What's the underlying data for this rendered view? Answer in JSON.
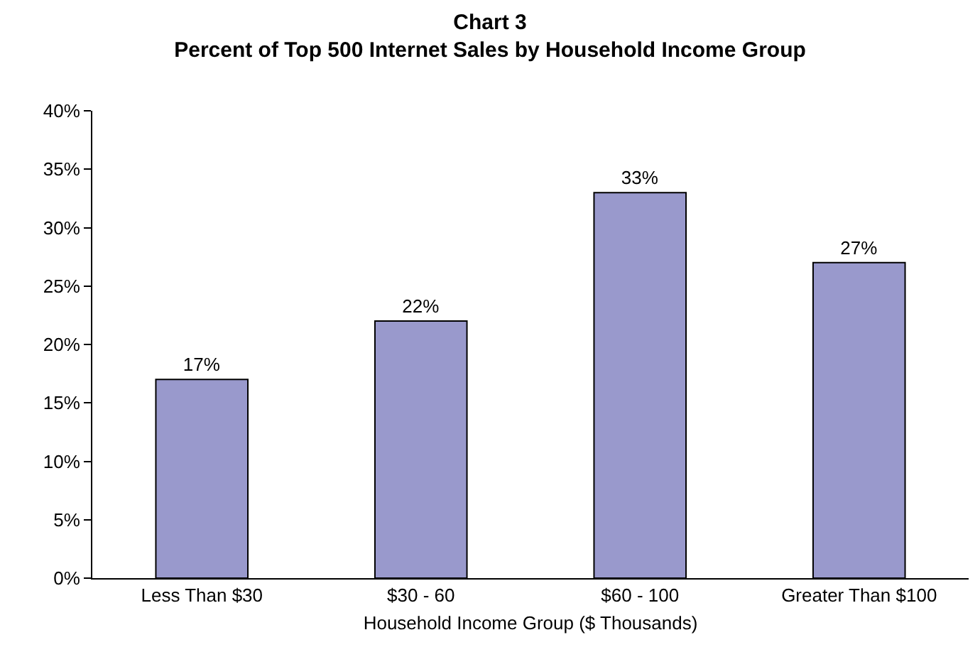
{
  "chart_data": {
    "type": "bar",
    "title": "Chart 3",
    "subtitle": "Percent of Top 500 Internet Sales by Household Income Group",
    "xlabel": "Household Income Group ($ Thousands)",
    "categories": [
      "Less Than $30",
      "$30 - 60",
      "$60 - 100",
      "Greater Than $100"
    ],
    "values": [
      17,
      22,
      33,
      27
    ],
    "color": "#9999cc",
    "data_labels": true,
    "value_labels": [
      "17%",
      "22%",
      "33%",
      "27%"
    ],
    "ylim": [
      0,
      40
    ],
    "yticks": [
      {
        "value": 0,
        "label": "0%"
      },
      {
        "value": 5,
        "label": "5%"
      },
      {
        "value": 10,
        "label": "10%"
      },
      {
        "value": 15,
        "label": "15%"
      },
      {
        "value": 20,
        "label": "20%"
      },
      {
        "value": 25,
        "label": "25%"
      },
      {
        "value": 30,
        "label": "30%"
      },
      {
        "value": 35,
        "label": "35%"
      },
      {
        "value": 40,
        "label": "40%"
      }
    ],
    "legend": false
  }
}
